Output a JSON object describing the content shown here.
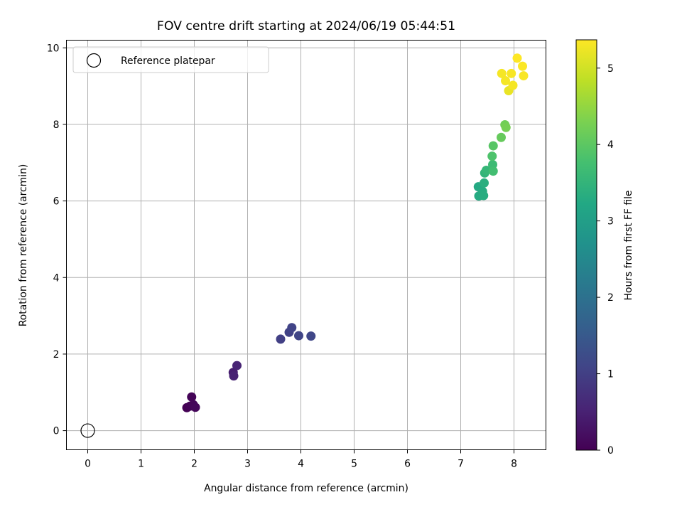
{
  "chart_data": {
    "type": "scatter",
    "title": "FOV centre drift starting at 2024/06/19 05:44:51",
    "xlabel": "Angular distance from reference (arcmin)",
    "ylabel": "Rotation from reference (arcmin)",
    "xlim": [
      -0.4,
      8.6
    ],
    "ylim": [
      -0.5,
      10.2
    ],
    "xticks": [
      "0",
      "1",
      "2",
      "3",
      "4",
      "5",
      "6",
      "7",
      "8"
    ],
    "yticks": [
      "0",
      "2",
      "4",
      "6",
      "8",
      "10"
    ],
    "grid": true,
    "legend": {
      "placement": "top-left",
      "entries": [
        "Reference platepar"
      ]
    },
    "reference_point": {
      "x": 0,
      "y": 0
    },
    "colorbar": {
      "label": "Hours from first FF file",
      "range": [
        0,
        5.37
      ],
      "ticks": [
        "0",
        "1",
        "2",
        "3",
        "4",
        "5"
      ],
      "colormap": "viridis"
    },
    "points": [
      {
        "x": 1.86,
        "y": 0.6,
        "hours": 0.0
      },
      {
        "x": 1.92,
        "y": 0.64,
        "hours": 0.03
      },
      {
        "x": 1.95,
        "y": 0.88,
        "hours": 0.05
      },
      {
        "x": 1.98,
        "y": 0.68,
        "hours": 0.07
      },
      {
        "x": 2.02,
        "y": 0.61,
        "hours": 0.09
      },
      {
        "x": 2.73,
        "y": 1.52,
        "hours": 0.45
      },
      {
        "x": 2.74,
        "y": 1.43,
        "hours": 0.5
      },
      {
        "x": 2.8,
        "y": 1.7,
        "hours": 0.55
      },
      {
        "x": 3.62,
        "y": 2.39,
        "hours": 1.0
      },
      {
        "x": 3.78,
        "y": 2.57,
        "hours": 1.04
      },
      {
        "x": 3.83,
        "y": 2.69,
        "hours": 1.07
      },
      {
        "x": 3.96,
        "y": 2.48,
        "hours": 1.1
      },
      {
        "x": 4.19,
        "y": 2.47,
        "hours": 1.13
      },
      {
        "x": 7.33,
        "y": 6.37,
        "hours": 3.25
      },
      {
        "x": 7.34,
        "y": 6.13,
        "hours": 3.28
      },
      {
        "x": 7.41,
        "y": 6.25,
        "hours": 3.3
      },
      {
        "x": 7.43,
        "y": 6.14,
        "hours": 3.32
      },
      {
        "x": 7.44,
        "y": 6.47,
        "hours": 3.36
      },
      {
        "x": 7.45,
        "y": 6.73,
        "hours": 3.48
      },
      {
        "x": 7.48,
        "y": 6.8,
        "hours": 3.55
      },
      {
        "x": 7.6,
        "y": 6.95,
        "hours": 3.65
      },
      {
        "x": 7.61,
        "y": 6.78,
        "hours": 3.72
      },
      {
        "x": 7.59,
        "y": 7.17,
        "hours": 3.85
      },
      {
        "x": 7.61,
        "y": 7.44,
        "hours": 3.95
      },
      {
        "x": 7.76,
        "y": 7.66,
        "hours": 4.1
      },
      {
        "x": 7.83,
        "y": 7.99,
        "hours": 4.2
      },
      {
        "x": 7.85,
        "y": 7.92,
        "hours": 4.25
      },
      {
        "x": 7.77,
        "y": 9.33,
        "hours": 5.3
      },
      {
        "x": 7.84,
        "y": 9.14,
        "hours": 5.3
      },
      {
        "x": 7.9,
        "y": 8.88,
        "hours": 5.2
      },
      {
        "x": 7.95,
        "y": 9.33,
        "hours": 5.32
      },
      {
        "x": 7.98,
        "y": 9.02,
        "hours": 5.3
      },
      {
        "x": 8.06,
        "y": 9.73,
        "hours": 5.37
      },
      {
        "x": 8.16,
        "y": 9.52,
        "hours": 5.35
      },
      {
        "x": 8.18,
        "y": 9.27,
        "hours": 5.33
      }
    ]
  }
}
